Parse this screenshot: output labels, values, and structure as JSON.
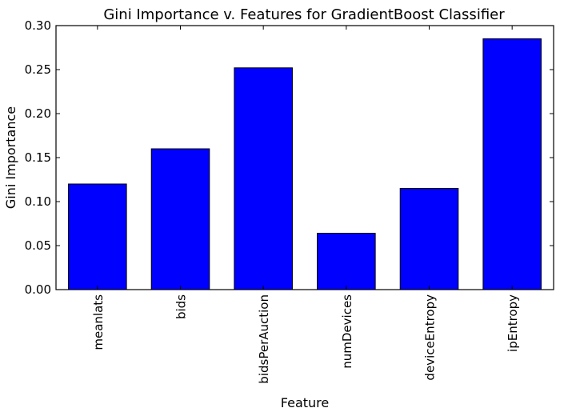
{
  "chart_data": {
    "type": "bar",
    "title": "Gini Importance v. Features for GradientBoost Classifier",
    "xlabel": "Feature",
    "ylabel": "Gini Importance",
    "categories": [
      "meanlats",
      "bids",
      "bidsPerAuction",
      "numDevices",
      "deviceEntropy",
      "ipEntropy"
    ],
    "values": [
      0.12,
      0.16,
      0.252,
      0.064,
      0.115,
      0.285
    ],
    "ylim": [
      0,
      0.3
    ],
    "yticks": [
      "0.00",
      "0.05",
      "0.10",
      "0.15",
      "0.20",
      "0.25",
      "0.30"
    ],
    "grid": false,
    "bar_color": "#0000ff",
    "edge_color": "#000000"
  }
}
